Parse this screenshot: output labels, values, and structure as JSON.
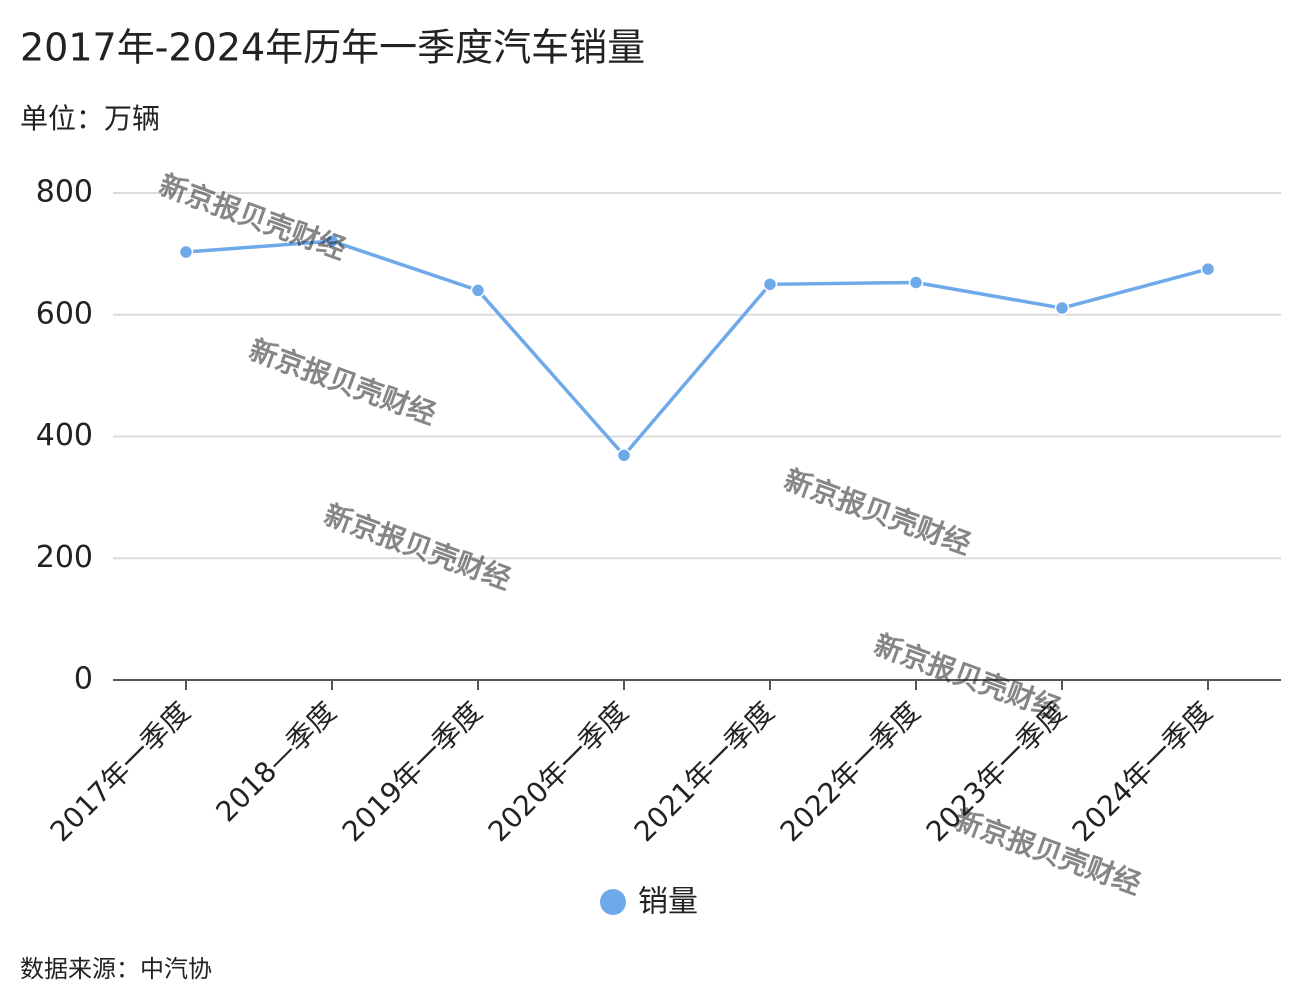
{
  "chart_data": {
    "type": "line",
    "title": "2017年-2024年历年一季度汽车销量",
    "subtitle": "单位：万辆",
    "source": "数据来源：中汽协",
    "watermark": "新京报贝壳财经",
    "categories": [
      "2017年一季度",
      "2018—季度",
      "2019年一季度",
      "2020年一季度",
      "2021年一季度",
      "2022年一季度",
      "2023年一季度",
      "2024年一季度"
    ],
    "series": [
      {
        "name": "销量",
        "color": "#6eaaea",
        "values": [
          703,
          721,
          640,
          369,
          650,
          653,
          611,
          675
        ]
      }
    ],
    "ylim": [
      0,
      800
    ],
    "yticks": [
      0,
      200,
      400,
      600,
      800
    ],
    "grid": true,
    "legend": "bottom"
  }
}
